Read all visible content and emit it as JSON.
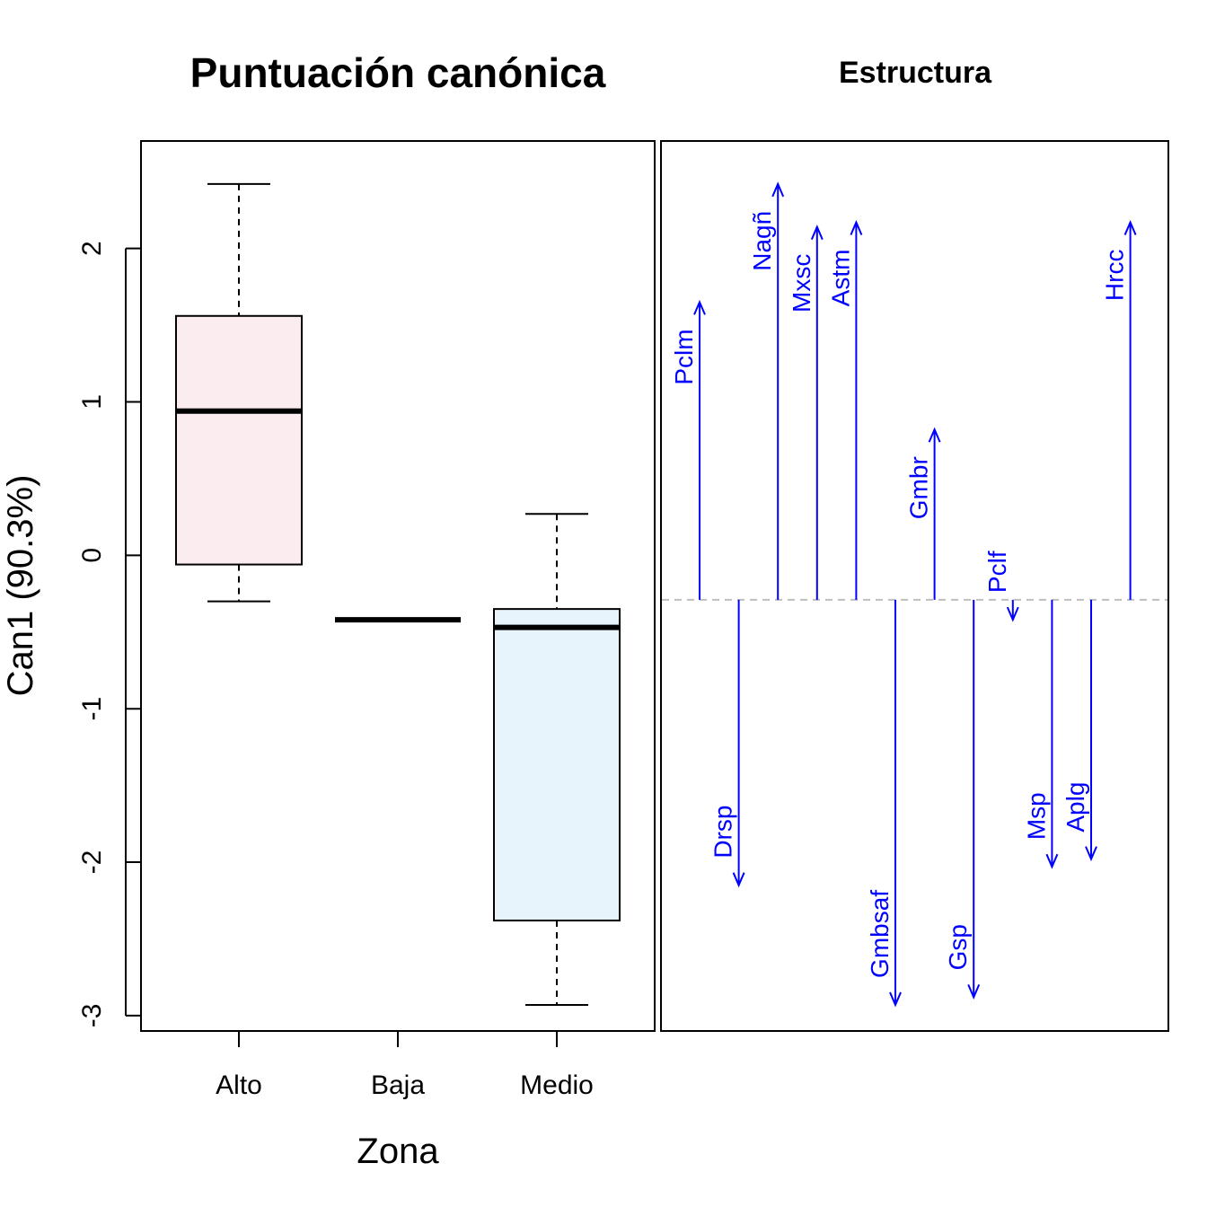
{
  "chart_data": [
    {
      "type": "box",
      "title": "Puntuación canónica",
      "xlabel": "Zona",
      "ylabel": "Can1 (90.3%)",
      "ylim": [
        -3.1,
        2.7
      ],
      "yticks": [
        -3,
        -2,
        -1,
        0,
        1,
        2
      ],
      "ytick_labels": [
        "-3",
        "-2",
        "-1",
        "0",
        "1",
        "2"
      ],
      "categories": [
        "Alto",
        "Baja",
        "Medio"
      ],
      "boxes": [
        {
          "category": "Alto",
          "min": -0.3,
          "q1": -0.06,
          "median": 0.94,
          "q3": 1.56,
          "max": 2.42,
          "fill": "#fbecf0"
        },
        {
          "category": "Baja",
          "min": -0.42,
          "q1": -0.42,
          "median": -0.42,
          "q3": -0.42,
          "max": -0.42,
          "fill": "#ffffff"
        },
        {
          "category": "Medio",
          "min": -2.93,
          "q1": -2.38,
          "median": -0.47,
          "q3": -0.35,
          "max": 0.27,
          "fill": "#e8f4fb"
        }
      ]
    },
    {
      "type": "structure-arrows",
      "title": "Estructura",
      "baseline": -0.29,
      "ylim": [
        -3.1,
        2.7
      ],
      "arrow_color": "#0000ff",
      "variables": [
        {
          "name": "Pclm",
          "end": 1.65
        },
        {
          "name": "Drsp",
          "end": -2.15
        },
        {
          "name": "Nagñ",
          "end": 2.42
        },
        {
          "name": "Mxsc",
          "end": 2.14
        },
        {
          "name": "Astm",
          "end": 2.17
        },
        {
          "name": "Gmbsaf",
          "end": -2.93
        },
        {
          "name": "Gmbr",
          "end": 0.82
        },
        {
          "name": "Gsp",
          "end": -2.88
        },
        {
          "name": "Pclf",
          "end": -0.42
        },
        {
          "name": "Msp",
          "end": -2.03
        },
        {
          "name": "Aplg",
          "end": -1.98
        },
        {
          "name": "Hrcc",
          "end": 2.17
        }
      ]
    }
  ]
}
